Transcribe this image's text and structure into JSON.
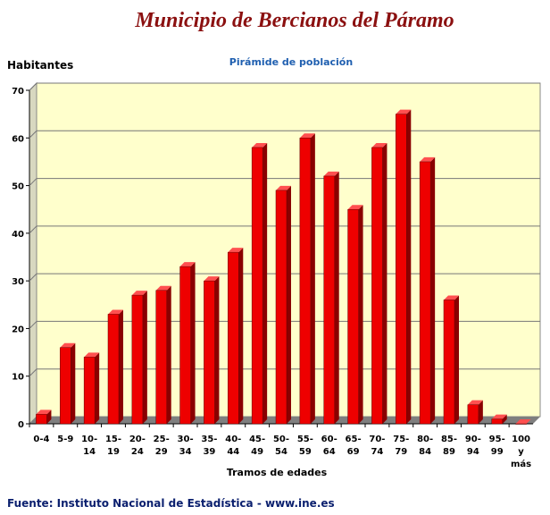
{
  "header": {
    "title": "Municipio de Bercianos del Páramo",
    "subtitle": "Pirámide de población"
  },
  "footer": {
    "source": "Fuente: Instituto Nacional de Estadística - www.ine.es"
  },
  "colors": {
    "bar": "#ee0000",
    "plot_background": "#ffffcc",
    "floor": "#7f7f7f",
    "title": "#8b1010",
    "subtitle": "#1f5fb0"
  },
  "chart_data": {
    "type": "bar",
    "title": "Pirámide de población",
    "xlabel": "Tramos de edades",
    "ylabel": "Habitantes",
    "ylim": [
      0,
      70
    ],
    "yticks": [
      0,
      10,
      20,
      30,
      40,
      50,
      60,
      70
    ],
    "grid": true,
    "legend": "none",
    "categories": [
      [
        "0-4"
      ],
      [
        "5-9"
      ],
      [
        "10-",
        "14"
      ],
      [
        "15-",
        "19"
      ],
      [
        "20-",
        "24"
      ],
      [
        "25-",
        "29"
      ],
      [
        "30-",
        "34"
      ],
      [
        "35-",
        "39"
      ],
      [
        "40-",
        "44"
      ],
      [
        "45-",
        "49"
      ],
      [
        "50-",
        "54"
      ],
      [
        "55-",
        "59"
      ],
      [
        "60-",
        "64"
      ],
      [
        "65-",
        "69"
      ],
      [
        "70-",
        "74"
      ],
      [
        "75-",
        "79"
      ],
      [
        "80-",
        "84"
      ],
      [
        "85-",
        "89"
      ],
      [
        "90-",
        "94"
      ],
      [
        "95-",
        "99"
      ],
      [
        "100",
        "y",
        "más"
      ]
    ],
    "values": [
      2,
      16,
      14,
      23,
      27,
      28,
      33,
      30,
      36,
      58,
      49,
      60,
      52,
      45,
      58,
      65,
      55,
      26,
      4,
      1,
      0
    ]
  }
}
